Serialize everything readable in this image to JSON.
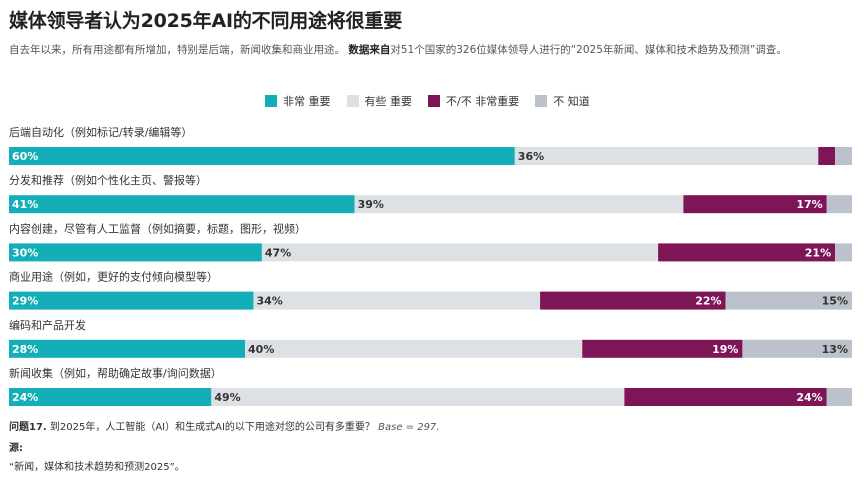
{
  "header": {
    "title": "媒体领导者认为2025年AI的不同用途将很重要",
    "subtitle_lead": "自去年以来，所有用途都有所增加，特别是后端，新闻收集和商业用途。",
    "subtitle_bold": "数据来自",
    "subtitle_tail": "对51个国家的326位媒体领导人进行的“2025年新闻、媒体和技术趋势及预测”调查。"
  },
  "legend": [
    {
      "label": "非常 重要",
      "color": "#13aeb7"
    },
    {
      "label": "有些 重要",
      "color": "#dde1e6"
    },
    {
      "label": "不/不 非常重要",
      "color": "#7e1557"
    },
    {
      "label": "不 知道",
      "color": "#bcc2cc"
    }
  ],
  "chart_data": {
    "type": "bar",
    "stacked": true,
    "orientation": "horizontal",
    "categories": [
      "后端自动化（例如标记/转录/编辑等）",
      "分发和推荐（例如个性化主页、警报等）",
      "内容创建，尽管有人工监督（例如摘要，标题，图形，视频）",
      "商业用途（例如，更好的支付倾向模型等）",
      " 编码和产品开发",
      "新闻收集（例如，帮助确定故事/询问数据）"
    ],
    "series": [
      {
        "name": "非常 重要",
        "color": "#13aeb7",
        "values": [
          60,
          41,
          30,
          29,
          28,
          24
        ],
        "labels": [
          "60%",
          "41%",
          "30%",
          "29%",
          "28%",
          "24%"
        ]
      },
      {
        "name": "有些 重要",
        "color": "#dde1e6",
        "values": [
          36,
          39,
          47,
          34,
          40,
          49
        ],
        "labels": [
          "36%",
          "39%",
          "47%",
          "34%",
          "40%",
          "49%"
        ]
      },
      {
        "name": "不/不 非常重要",
        "color": "#7e1557",
        "values": [
          2,
          17,
          21,
          22,
          19,
          24
        ],
        "labels": [
          "",
          "17%",
          "21%",
          "22%",
          "19%",
          "24%"
        ]
      },
      {
        "name": "不 知道",
        "color": "#bcc2cc",
        "values": [
          2,
          3,
          2,
          15,
          13,
          3
        ],
        "labels": [
          "",
          "",
          "",
          "15%",
          "13%",
          ""
        ]
      }
    ]
  },
  "footer": {
    "question_label": "问题17.",
    "question_text": " 到2025年，人工智能（AI）和生成式AI的以下用途对您的公司有多重要？",
    "base": "Base = 297.",
    "source_label": "源:",
    "source_text": "“新闻，媒体和技术趋势和预测2025”。"
  }
}
